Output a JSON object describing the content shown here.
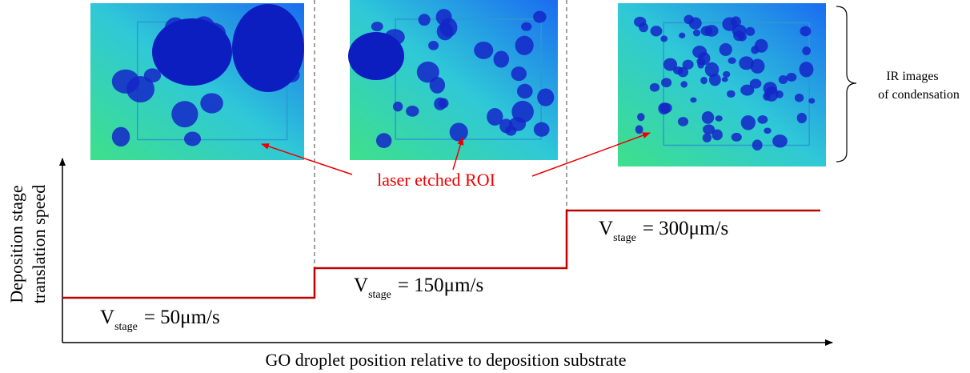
{
  "y_axis_label": [
    "Deposition stage",
    "translation speed"
  ],
  "x_axis_label": "GO droplet position relative to deposition substrate",
  "annotation": "laser etched ROI",
  "brace_label": [
    "IR images",
    "of condensation"
  ],
  "speed_labels": [
    {
      "symbol": "V",
      "subscript": "stage",
      "value": "= 50μm/s"
    },
    {
      "symbol": "V",
      "subscript": "stage",
      "value": "= 150μm/s"
    },
    {
      "symbol": "V",
      "subscript": "stage",
      "value": "= 300μm/s"
    }
  ]
}
